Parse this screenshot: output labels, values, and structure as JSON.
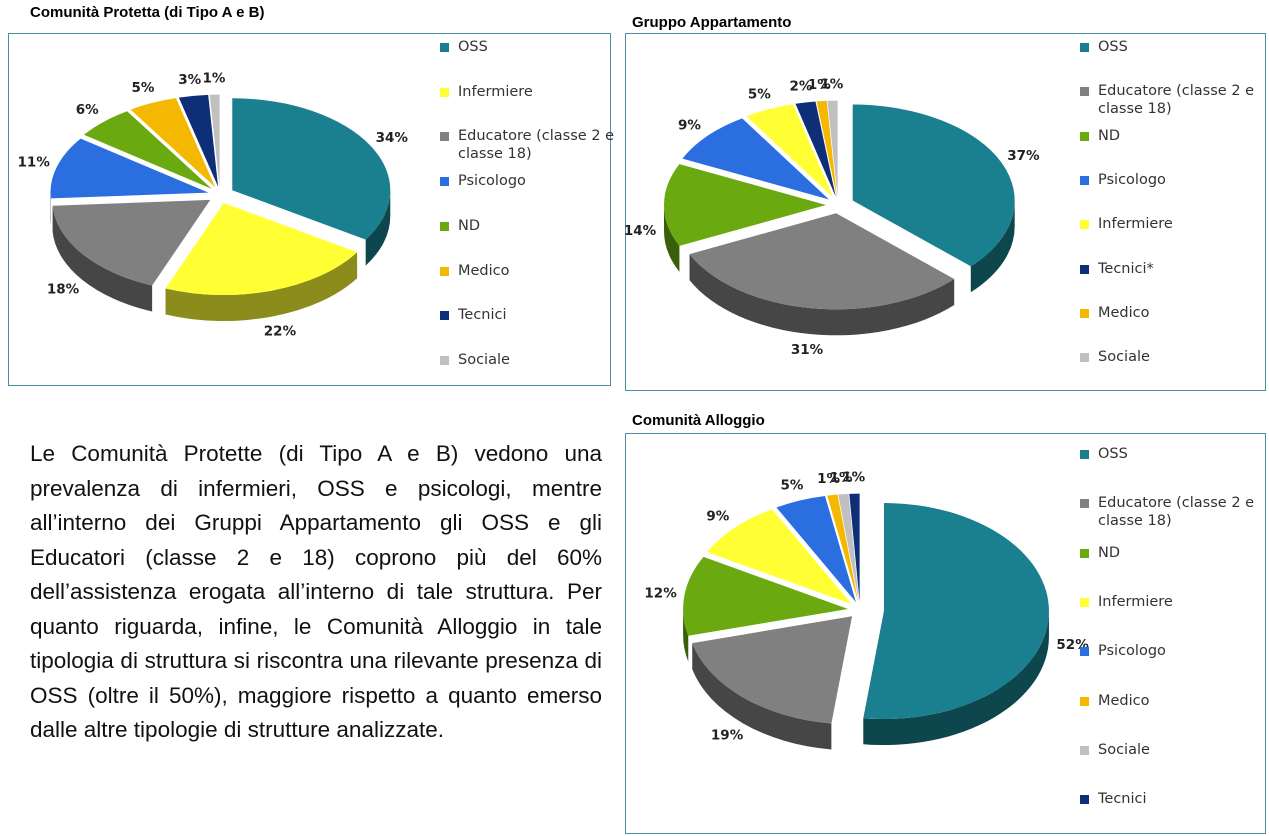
{
  "text": "Le Comunità Protette (di Tipo A e B) vedono una prevalenza di infermieri, OSS e psicologi, mentre all’interno dei Gruppi Appartamento gli OSS e gli Educatori (classe 2 e 18) coprono più del 60% dell’assistenza erogata all’interno di tale struttura. Per quanto riguarda, infine, le Comunità Alloggio in tale tipologia di struttura si riscontra una rilevante presenza di OSS (oltre il 50%), maggiore rispetto a quanto emerso dalle altre tipologie di strutture analizzate.",
  "chart_data": [
    {
      "type": "pie",
      "title": "Comunità Protetta (di Tipo A e B)",
      "categories": [
        "OSS",
        "Infermiere",
        "Educatore (classe 2 e classe 18)",
        "Psicologo",
        "ND",
        "Medico",
        "Tecnici",
        "Sociale"
      ],
      "values": [
        34,
        22,
        18,
        11,
        6,
        5,
        3,
        1
      ],
      "value_labels": [
        "34%",
        "22%",
        "18%",
        "11%",
        "6%",
        "5%",
        "3%",
        "1%"
      ],
      "colors": [
        "#1a7f8e",
        "#ffff33",
        "#808080",
        "#2a6ee0",
        "#6aaa10",
        "#f5b800",
        "#0e2e78",
        "#c0c0c0"
      ]
    },
    {
      "type": "pie",
      "title": "Gruppo Appartamento",
      "categories": [
        "OSS",
        "Educatore (classe 2 e classe 18)",
        "ND",
        "Psicologo",
        "Infermiere",
        "Tecnici*",
        "Medico",
        "Sociale"
      ],
      "values": [
        37,
        31,
        14,
        9,
        5,
        2,
        1,
        1
      ],
      "value_labels": [
        "37%",
        "31%",
        "14%",
        "9%",
        "5%",
        "2%",
        "1%",
        "1%"
      ],
      "colors": [
        "#1a7f8e",
        "#808080",
        "#6aaa10",
        "#2a6ee0",
        "#ffff33",
        "#0e2e78",
        "#f5b800",
        "#c0c0c0"
      ]
    },
    {
      "type": "pie",
      "title": "Comunità Alloggio",
      "categories": [
        "OSS",
        "Educatore (classe 2 e classe 18)",
        "ND",
        "Infermiere",
        "Psicologo",
        "Medico",
        "Sociale",
        "Tecnici"
      ],
      "values": [
        52,
        19,
        12,
        9,
        5,
        1,
        1,
        1
      ],
      "value_labels": [
        "52%",
        "19%",
        "12%",
        "9%",
        "5%",
        "1%",
        "1%",
        "1%"
      ],
      "colors": [
        "#1a7f8e",
        "#808080",
        "#6aaa10",
        "#ffff33",
        "#2a6ee0",
        "#f5b800",
        "#c0c0c0",
        "#0e2e78"
      ]
    }
  ]
}
